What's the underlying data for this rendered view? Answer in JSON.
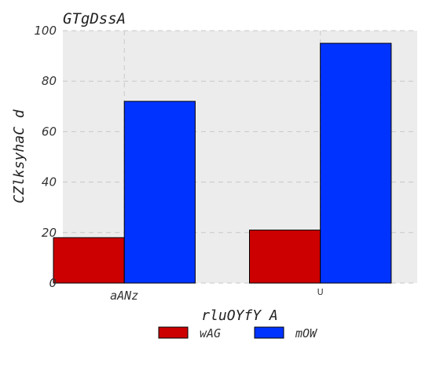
{
  "chart_data": {
    "type": "bar",
    "title": "GTgDssA",
    "xlabel": "rluOYfY A",
    "ylabel": "CZlksyhaC d",
    "categories": [
      "aANz",
      "U"
    ],
    "series": [
      {
        "name": "wAG",
        "color": "#cc0000",
        "values": [
          18,
          21
        ]
      },
      {
        "name": "mOW",
        "color": "#0033ff",
        "values": [
          72,
          95
        ]
      }
    ],
    "ylim": [
      0,
      100
    ],
    "yticks": [
      0,
      20,
      40,
      60,
      80,
      100
    ],
    "grid": true,
    "legend_position": "bottom-center"
  }
}
